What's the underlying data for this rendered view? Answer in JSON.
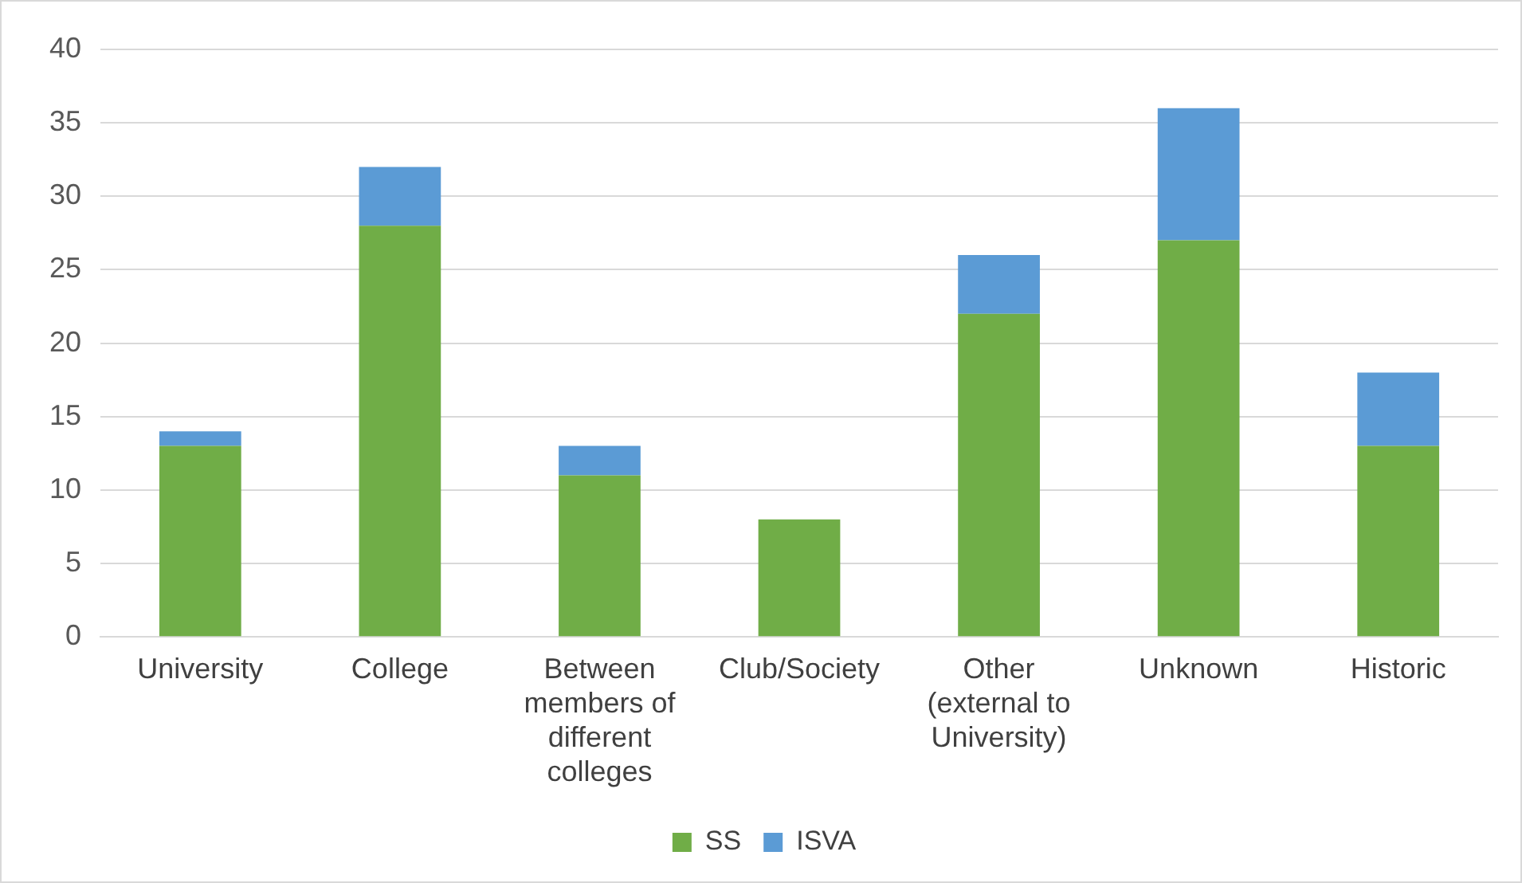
{
  "chart_data": {
    "type": "bar",
    "stacked": true,
    "categories": [
      "University",
      "College",
      "Between members of different colleges",
      "Club/Society",
      "Other (external to University)",
      "Unknown",
      "Historic"
    ],
    "series": [
      {
        "name": "SS",
        "color": "#70ad47",
        "values": [
          13,
          28,
          11,
          8,
          22,
          27,
          13
        ]
      },
      {
        "name": "ISVA",
        "color": "#5b9bd5",
        "values": [
          1,
          4,
          2,
          0,
          4,
          9,
          5
        ]
      }
    ],
    "ylim": [
      0,
      40
    ],
    "yticks": [
      0,
      5,
      10,
      15,
      20,
      25,
      30,
      35,
      40
    ],
    "grid": "y",
    "legend": "bottom"
  }
}
